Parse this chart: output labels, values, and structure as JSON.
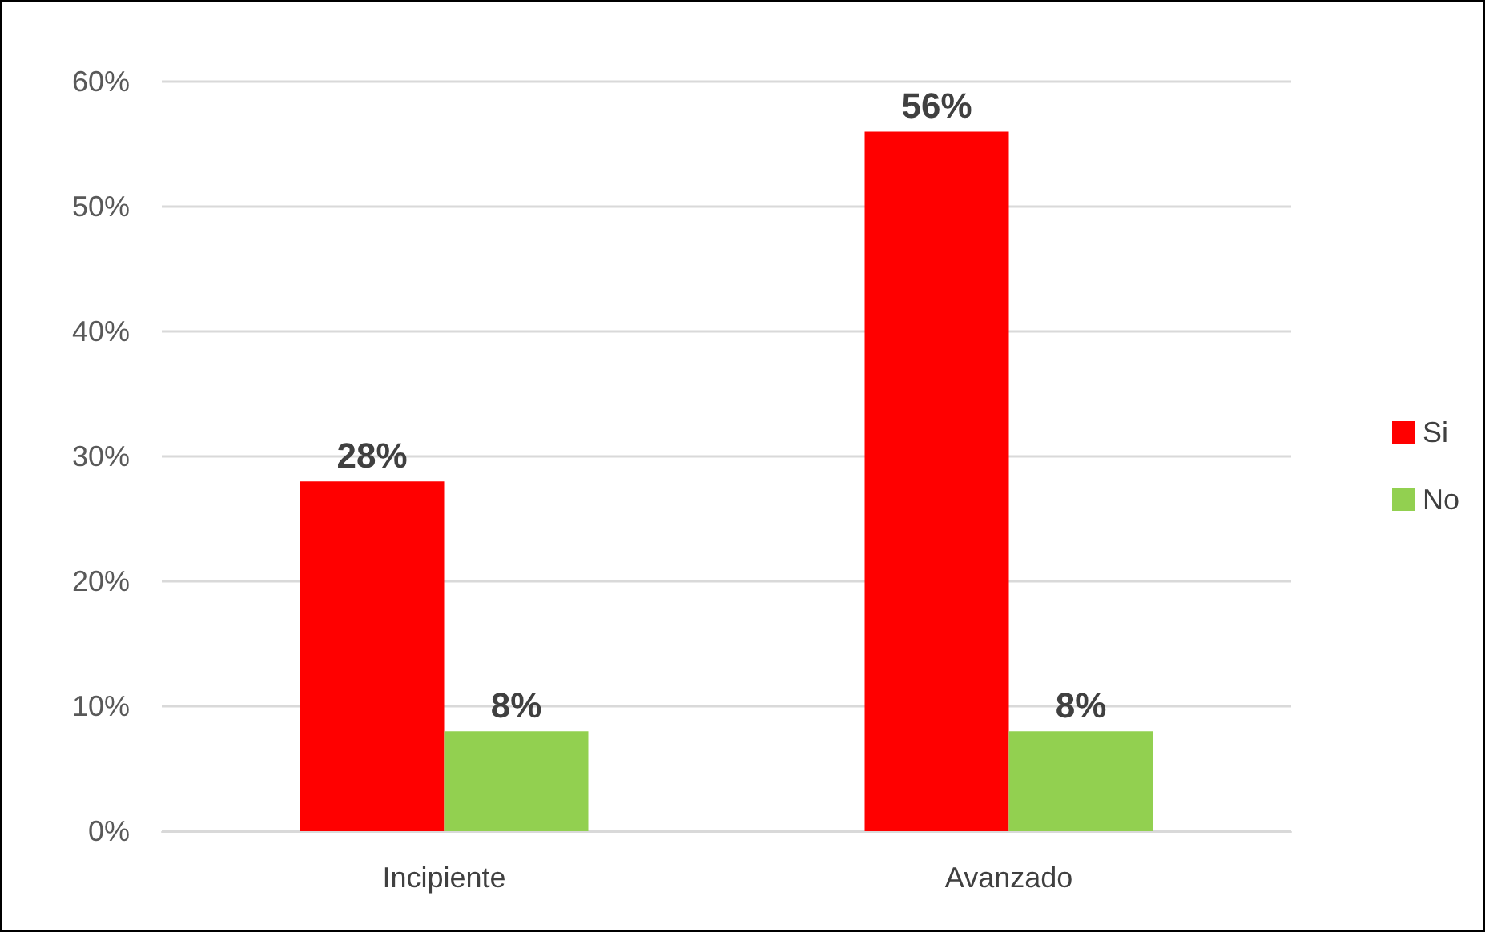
{
  "chart_data": {
    "type": "bar",
    "categories": [
      "Incipiente",
      "Avanzado"
    ],
    "series": [
      {
        "name": "Si",
        "color": "#ff0000",
        "values": [
          28,
          56
        ],
        "value_labels": [
          "28%",
          "56%"
        ]
      },
      {
        "name": "No",
        "color": "#92d050",
        "values": [
          8,
          8
        ],
        "value_labels": [
          "8%",
          "8%"
        ]
      }
    ],
    "ylim": [
      0,
      60
    ],
    "yticks": [
      {
        "value": 0,
        "label": "0%"
      },
      {
        "value": 10,
        "label": "10%"
      },
      {
        "value": 20,
        "label": "20%"
      },
      {
        "value": 30,
        "label": "30%"
      },
      {
        "value": 40,
        "label": "40%"
      },
      {
        "value": 50,
        "label": "50%"
      },
      {
        "value": 60,
        "label": "60%"
      }
    ],
    "grid": "y",
    "legend": "right"
  }
}
